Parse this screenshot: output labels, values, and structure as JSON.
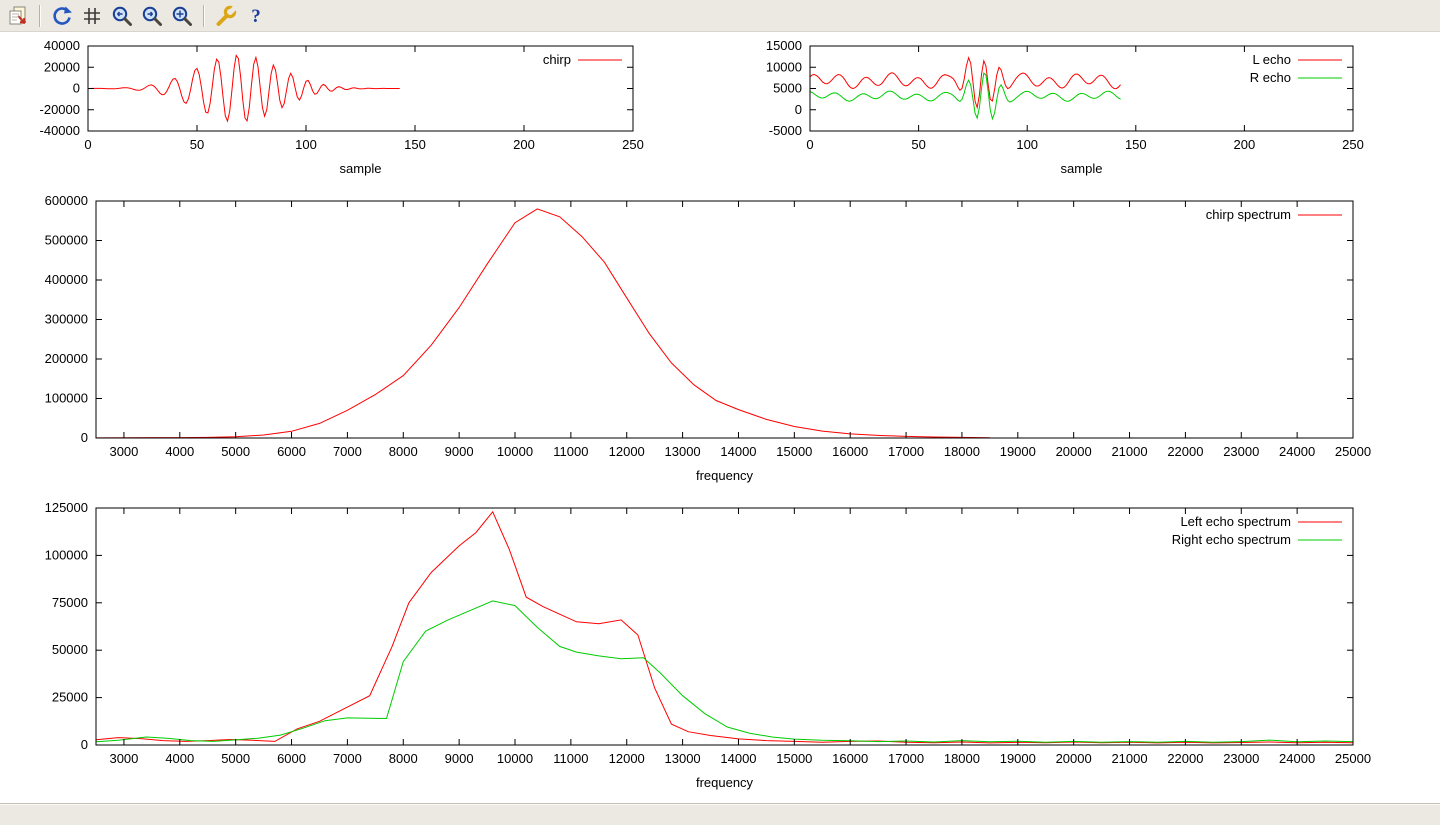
{
  "window": {
    "bg_color": "#ece9e2",
    "canvas_color": "#ffffff"
  },
  "toolbar": {
    "buttons": [
      "copy-to-clipboard",
      "replot",
      "toggle-grid",
      "zoom-previous",
      "zoom-next",
      "autoscale",
      "configure",
      "help"
    ],
    "help_glyph": "?"
  },
  "status_bar": {
    "text": ""
  },
  "colors": {
    "red": "#ff0000",
    "green": "#00cc00",
    "axis": "#000000"
  },
  "chart_data": [
    {
      "id": "chirp-signal",
      "type": "line",
      "title": "",
      "xlabel": "sample",
      "ylabel": "",
      "xlim": [
        0,
        250
      ],
      "xticks": [
        0,
        50,
        100,
        150,
        200,
        250
      ],
      "ylim": [
        -40000,
        40000
      ],
      "yticks": [
        -40000,
        -20000,
        0,
        20000,
        40000
      ],
      "grid": false,
      "legend_position": "top-right-inside",
      "description": "FM chirp burst: near zero until sample ~25, oscillation grows to peak amplitude ~±32000 around sample 70, decays to zero by sample ~140, trace ends at sample 143",
      "series": [
        {
          "name": "chirp",
          "color": "#ff0000",
          "generator": {
            "n": 143,
            "chirp": {
              "peak": 32000,
              "center": 69,
              "sigma": 19,
              "f0": 0.07,
              "f1": 0.16
            }
          }
        }
      ]
    },
    {
      "id": "echo-signals",
      "type": "line",
      "title": "",
      "xlabel": "sample",
      "ylabel": "",
      "xlim": [
        0,
        250
      ],
      "xticks": [
        0,
        50,
        100,
        150,
        200,
        250
      ],
      "ylim": [
        -5000,
        15000
      ],
      "yticks": [
        -5000,
        0,
        5000,
        10000,
        15000
      ],
      "grid": false,
      "legend_position": "top-right-inside",
      "description": "Left echo ripples around ~6800 with a strong burst near sample 80 reaching ~14000 / -3000; right echo ripples around ~3200 with burst reaching ~9800 / -4200; both end at sample 143",
      "series": [
        {
          "name": "L echo",
          "color": "#ff0000",
          "generator": {
            "n": 143,
            "base": 6800,
            "sines": [
              [
                1300,
                0.52,
                0.8
              ],
              [
                600,
                0.21,
                0.0
              ]
            ],
            "burst": {
              "amp": 6800,
              "center": 79,
              "sigma": 6.0,
              "w": 0.85,
              "phase": 0.5
            }
          }
        },
        {
          "name": "R echo",
          "color": "#00cc00",
          "generator": {
            "n": 143,
            "base": 3200,
            "sines": [
              [
                800,
                0.5,
                2.0
              ],
              [
                400,
                0.19,
                1.0
              ]
            ],
            "burst": {
              "amp": 6800,
              "center": 80,
              "sigma": 5.5,
              "w": 0.8,
              "phase": 1.2
            }
          }
        }
      ]
    },
    {
      "id": "chirp-spectrum",
      "type": "line",
      "title": "",
      "xlabel": "frequency",
      "ylabel": "",
      "xlim": [
        2500,
        25000
      ],
      "xticks": [
        3000,
        4000,
        5000,
        6000,
        7000,
        8000,
        9000,
        10000,
        11000,
        12000,
        13000,
        14000,
        15000,
        16000,
        17000,
        18000,
        19000,
        20000,
        21000,
        22000,
        23000,
        24000,
        25000
      ],
      "ylim": [
        0,
        600000
      ],
      "yticks": [
        0,
        100000,
        200000,
        300000,
        400000,
        500000,
        600000
      ],
      "grid": false,
      "legend_position": "top-right-inside",
      "series": [
        {
          "name": "chirp spectrum",
          "color": "#ff0000",
          "points": [
            [
              2500,
              300
            ],
            [
              3000,
              600
            ],
            [
              3500,
              900
            ],
            [
              4000,
              1100
            ],
            [
              4500,
              1600
            ],
            [
              5000,
              3000
            ],
            [
              5500,
              7500
            ],
            [
              6000,
              17000
            ],
            [
              6500,
              37000
            ],
            [
              7000,
              70000
            ],
            [
              7500,
              110000
            ],
            [
              8000,
              158000
            ],
            [
              8500,
              235000
            ],
            [
              9000,
              330000
            ],
            [
              9500,
              440000
            ],
            [
              10000,
              545000
            ],
            [
              10400,
              580000
            ],
            [
              10800,
              560000
            ],
            [
              11200,
              510000
            ],
            [
              11600,
              445000
            ],
            [
              12000,
              355000
            ],
            [
              12400,
              265000
            ],
            [
              12800,
              190000
            ],
            [
              13200,
              135000
            ],
            [
              13600,
              95000
            ],
            [
              14000,
              72000
            ],
            [
              14500,
              47000
            ],
            [
              15000,
              29000
            ],
            [
              15500,
              17500
            ],
            [
              16000,
              10500
            ],
            [
              16500,
              6500
            ],
            [
              17000,
              4000
            ],
            [
              17500,
              2500
            ],
            [
              18000,
              1400
            ],
            [
              18500,
              700
            ]
          ]
        }
      ]
    },
    {
      "id": "echo-spectra",
      "type": "line",
      "title": "",
      "xlabel": "frequency",
      "ylabel": "",
      "xlim": [
        2500,
        25000
      ],
      "xticks": [
        3000,
        4000,
        5000,
        6000,
        7000,
        8000,
        9000,
        10000,
        11000,
        12000,
        13000,
        14000,
        15000,
        16000,
        17000,
        18000,
        19000,
        20000,
        21000,
        22000,
        23000,
        24000,
        25000
      ],
      "ylim": [
        0,
        125000
      ],
      "yticks": [
        0,
        25000,
        50000,
        75000,
        100000,
        125000
      ],
      "grid": false,
      "legend_position": "top-right-inside",
      "series": [
        {
          "name": "Left echo spectrum",
          "color": "#ff0000",
          "points": [
            [
              2500,
              2800
            ],
            [
              2900,
              3900
            ],
            [
              3300,
              3400
            ],
            [
              3700,
              2300
            ],
            [
              4100,
              1900
            ],
            [
              4500,
              2300
            ],
            [
              4900,
              2900
            ],
            [
              5300,
              2500
            ],
            [
              5700,
              1900
            ],
            [
              6100,
              8500
            ],
            [
              6500,
              12500
            ],
            [
              7000,
              20000
            ],
            [
              7400,
              26000
            ],
            [
              7800,
              52000
            ],
            [
              8100,
              75000
            ],
            [
              8500,
              91000
            ],
            [
              9000,
              105000
            ],
            [
              9300,
              112000
            ],
            [
              9600,
              123000
            ],
            [
              9900,
              103000
            ],
            [
              10200,
              78000
            ],
            [
              10500,
              73000
            ],
            [
              10800,
              69000
            ],
            [
              11100,
              65000
            ],
            [
              11500,
              64000
            ],
            [
              11900,
              66000
            ],
            [
              12200,
              58000
            ],
            [
              12500,
              30000
            ],
            [
              12800,
              11000
            ],
            [
              13100,
              7000
            ],
            [
              13500,
              5000
            ],
            [
              14000,
              3200
            ],
            [
              14500,
              2300
            ],
            [
              15000,
              1900
            ],
            [
              15500,
              1400
            ],
            [
              16000,
              1900
            ],
            [
              16500,
              2100
            ],
            [
              17000,
              1500
            ],
            [
              17500,
              1200
            ],
            [
              18000,
              1600
            ],
            [
              18500,
              1100
            ],
            [
              19000,
              1400
            ],
            [
              19500,
              1200
            ],
            [
              20000,
              1600
            ],
            [
              20500,
              1200
            ],
            [
              21000,
              1500
            ],
            [
              21500,
              1100
            ],
            [
              22000,
              1400
            ],
            [
              22500,
              1100
            ],
            [
              23000,
              1300
            ],
            [
              23500,
              1600
            ],
            [
              24000,
              1200
            ],
            [
              24500,
              1500
            ],
            [
              25000,
              1200
            ]
          ]
        },
        {
          "name": "Right echo spectrum",
          "color": "#00cc00",
          "points": [
            [
              2500,
              1700
            ],
            [
              2900,
              2500
            ],
            [
              3400,
              4200
            ],
            [
              3800,
              3500
            ],
            [
              4200,
              2300
            ],
            [
              4600,
              1900
            ],
            [
              5000,
              2700
            ],
            [
              5400,
              3600
            ],
            [
              5800,
              5200
            ],
            [
              6200,
              8800
            ],
            [
              6600,
              12800
            ],
            [
              7000,
              14300
            ],
            [
              7400,
              14100
            ],
            [
              7700,
              14000
            ],
            [
              8000,
              44000
            ],
            [
              8400,
              60000
            ],
            [
              8800,
              66000
            ],
            [
              9200,
              71000
            ],
            [
              9600,
              76000
            ],
            [
              10000,
              73500
            ],
            [
              10400,
              62000
            ],
            [
              10800,
              52000
            ],
            [
              11100,
              49000
            ],
            [
              11500,
              47000
            ],
            [
              11900,
              45500
            ],
            [
              12300,
              46000
            ],
            [
              12600,
              38000
            ],
            [
              13000,
              26000
            ],
            [
              13400,
              16500
            ],
            [
              13800,
              9500
            ],
            [
              14200,
              6200
            ],
            [
              14600,
              4200
            ],
            [
              15000,
              3100
            ],
            [
              15500,
              2500
            ],
            [
              16000,
              2200
            ],
            [
              16500,
              1800
            ],
            [
              17000,
              2100
            ],
            [
              17500,
              1600
            ],
            [
              18000,
              2300
            ],
            [
              18500,
              1700
            ],
            [
              19000,
              2000
            ],
            [
              19500,
              1500
            ],
            [
              20000,
              1900
            ],
            [
              20500,
              1400
            ],
            [
              21000,
              1800
            ],
            [
              21500,
              1500
            ],
            [
              22000,
              1900
            ],
            [
              22500,
              1400
            ],
            [
              23000,
              1800
            ],
            [
              23500,
              2600
            ],
            [
              24000,
              1700
            ],
            [
              24500,
              2100
            ],
            [
              25000,
              1800
            ]
          ]
        }
      ]
    }
  ]
}
